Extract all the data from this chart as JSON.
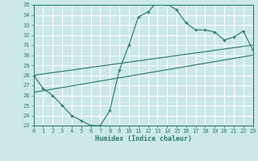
{
  "xlabel": "Humidex (Indice chaleur)",
  "ylabel": "",
  "bg_color": "#cce8e8",
  "grid_color": "#ffffff",
  "line_color": "#2e7d6e",
  "ylim": [
    23,
    35
  ],
  "xlim": [
    0,
    23
  ],
  "yticks": [
    23,
    24,
    25,
    26,
    27,
    28,
    29,
    30,
    31,
    32,
    33,
    34,
    35
  ],
  "xticks": [
    0,
    1,
    2,
    3,
    4,
    5,
    6,
    7,
    8,
    9,
    10,
    11,
    12,
    13,
    14,
    15,
    16,
    17,
    18,
    19,
    20,
    21,
    22,
    23
  ],
  "main_line_x": [
    0,
    1,
    2,
    3,
    4,
    5,
    6,
    7,
    8,
    9,
    10,
    11,
    12,
    13,
    14,
    15,
    16,
    17,
    18,
    19,
    20,
    21,
    22,
    23
  ],
  "main_line_y": [
    28.0,
    26.7,
    26.0,
    25.0,
    24.0,
    23.5,
    23.0,
    23.0,
    24.5,
    28.5,
    31.0,
    33.8,
    34.3,
    35.3,
    35.1,
    34.5,
    33.2,
    32.5,
    32.5,
    32.3,
    31.5,
    31.8,
    32.4,
    30.5
  ],
  "trend1_x": [
    0,
    23
  ],
  "trend1_y": [
    28.0,
    31.0
  ],
  "trend2_x": [
    0,
    23
  ],
  "trend2_y": [
    26.3,
    30.0
  ]
}
